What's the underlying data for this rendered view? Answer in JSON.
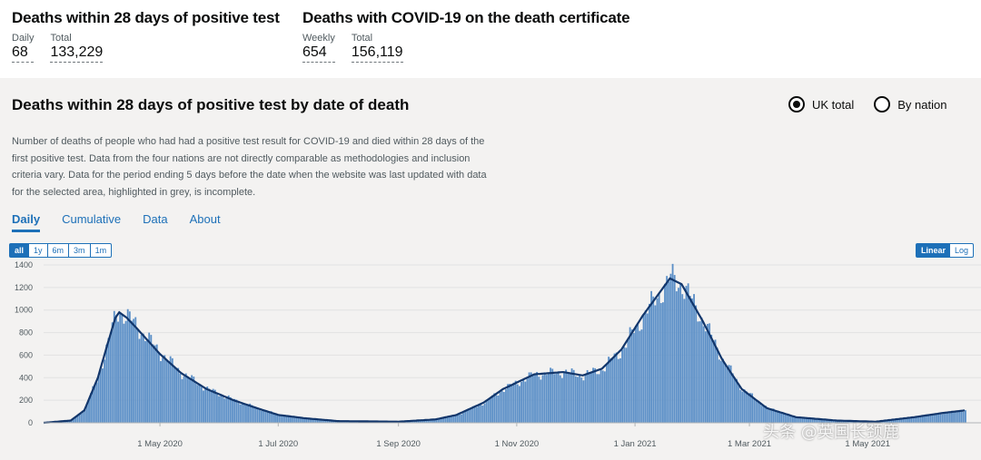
{
  "headlines": [
    {
      "title": "Deaths within 28 days of positive test",
      "metrics": [
        {
          "label": "Daily",
          "value": "68"
        },
        {
          "label": "Total",
          "value": "133,229"
        }
      ]
    },
    {
      "title": "Deaths with COVID-19 on the death certificate",
      "metrics": [
        {
          "label": "Weekly",
          "value": "654"
        },
        {
          "label": "Total",
          "value": "156,119"
        }
      ]
    }
  ],
  "card": {
    "title": "Deaths within 28 days of positive test by date of death",
    "radios": [
      {
        "label": "UK total",
        "selected": true
      },
      {
        "label": "By nation",
        "selected": false
      }
    ],
    "description": "Number of deaths of people who had had a positive test result for COVID-19 and died within 28 days of the first positive test. Data from the four nations are not directly comparable as methodologies and inclusion criteria vary. Data for the period ending 5 days before the date when the website was last updated with data for the selected area, highlighted in grey, is incomplete.",
    "tabs": [
      {
        "label": "Daily",
        "active": true
      },
      {
        "label": "Cumulative",
        "active": false
      },
      {
        "label": "Data",
        "active": false
      },
      {
        "label": "About",
        "active": false
      }
    ],
    "ranges": [
      {
        "label": "all",
        "active": true
      },
      {
        "label": "1y",
        "active": false
      },
      {
        "label": "6m",
        "active": false
      },
      {
        "label": "3m",
        "active": false
      },
      {
        "label": "1m",
        "active": false
      }
    ],
    "scales": [
      {
        "label": "Linear",
        "active": true
      },
      {
        "label": "Log",
        "active": false
      }
    ]
  },
  "watermark": "头条 @英国长颈鹿",
  "colors": {
    "bar": "#5b8fc7",
    "line": "#12366b",
    "accent": "#1d70b8"
  },
  "chart_data": {
    "type": "bar",
    "title": "",
    "xlabel": "",
    "ylabel": "",
    "x_ticks": [
      "1 May 2020",
      "1 Jul 2020",
      "1 Sep 2020",
      "1 Nov 2020",
      "1 Jan 2021",
      "1 Mar 2021",
      "1 May 2021"
    ],
    "y_ticks": [
      0,
      200,
      400,
      600,
      800,
      1000,
      1200,
      1400
    ],
    "ylim": [
      0,
      1400
    ],
    "x_start": "2020-03-02",
    "x_end": "2021-06-20",
    "series": [
      {
        "kind": "bar",
        "points": [
          [
            "2020-03-02",
            0
          ],
          [
            "2020-03-16",
            20
          ],
          [
            "2020-03-23",
            120
          ],
          [
            "2020-03-30",
            420
          ],
          [
            "2020-04-04",
            720
          ],
          [
            "2020-04-08",
            960
          ],
          [
            "2020-04-10",
            990
          ],
          [
            "2020-04-14",
            940
          ],
          [
            "2020-04-20",
            830
          ],
          [
            "2020-05-01",
            620
          ],
          [
            "2020-05-12",
            440
          ],
          [
            "2020-05-25",
            300
          ],
          [
            "2020-06-08",
            200
          ],
          [
            "2020-06-20",
            130
          ],
          [
            "2020-07-01",
            70
          ],
          [
            "2020-07-15",
            40
          ],
          [
            "2020-08-01",
            15
          ],
          [
            "2020-09-01",
            10
          ],
          [
            "2020-09-20",
            30
          ],
          [
            "2020-10-01",
            70
          ],
          [
            "2020-10-15",
            180
          ],
          [
            "2020-10-25",
            300
          ],
          [
            "2020-11-10",
            430
          ],
          [
            "2020-11-25",
            450
          ],
          [
            "2020-12-05",
            420
          ],
          [
            "2020-12-15",
            480
          ],
          [
            "2020-12-25",
            650
          ],
          [
            "2021-01-05",
            950
          ],
          [
            "2021-01-19",
            1280
          ],
          [
            "2021-01-25",
            1230
          ],
          [
            "2021-02-05",
            900
          ],
          [
            "2021-02-15",
            560
          ],
          [
            "2021-02-25",
            300
          ],
          [
            "2021-03-10",
            130
          ],
          [
            "2021-03-25",
            50
          ],
          [
            "2021-04-15",
            20
          ],
          [
            "2021-05-05",
            10
          ],
          [
            "2021-05-25",
            50
          ],
          [
            "2021-06-10",
            90
          ],
          [
            "2021-06-20",
            110
          ]
        ]
      },
      {
        "kind": "line",
        "points": [
          [
            "2020-03-02",
            0
          ],
          [
            "2020-03-16",
            20
          ],
          [
            "2020-03-23",
            110
          ],
          [
            "2020-03-30",
            400
          ],
          [
            "2020-04-04",
            700
          ],
          [
            "2020-04-08",
            930
          ],
          [
            "2020-04-10",
            980
          ],
          [
            "2020-04-14",
            930
          ],
          [
            "2020-04-20",
            820
          ],
          [
            "2020-05-01",
            610
          ],
          [
            "2020-05-12",
            440
          ],
          [
            "2020-05-25",
            300
          ],
          [
            "2020-06-08",
            200
          ],
          [
            "2020-06-20",
            130
          ],
          [
            "2020-07-01",
            70
          ],
          [
            "2020-07-15",
            40
          ],
          [
            "2020-08-01",
            15
          ],
          [
            "2020-09-01",
            10
          ],
          [
            "2020-09-20",
            30
          ],
          [
            "2020-10-01",
            70
          ],
          [
            "2020-10-15",
            180
          ],
          [
            "2020-10-25",
            300
          ],
          [
            "2020-11-10",
            430
          ],
          [
            "2020-11-25",
            450
          ],
          [
            "2020-12-05",
            420
          ],
          [
            "2020-12-15",
            480
          ],
          [
            "2020-12-25",
            650
          ],
          [
            "2021-01-05",
            950
          ],
          [
            "2021-01-19",
            1280
          ],
          [
            "2021-01-25",
            1230
          ],
          [
            "2021-02-05",
            900
          ],
          [
            "2021-02-15",
            560
          ],
          [
            "2021-02-25",
            300
          ],
          [
            "2021-03-10",
            130
          ],
          [
            "2021-03-25",
            50
          ],
          [
            "2021-04-15",
            20
          ],
          [
            "2021-05-05",
            10
          ],
          [
            "2021-05-25",
            50
          ],
          [
            "2021-06-10",
            90
          ],
          [
            "2021-06-20",
            110
          ]
        ]
      }
    ]
  }
}
